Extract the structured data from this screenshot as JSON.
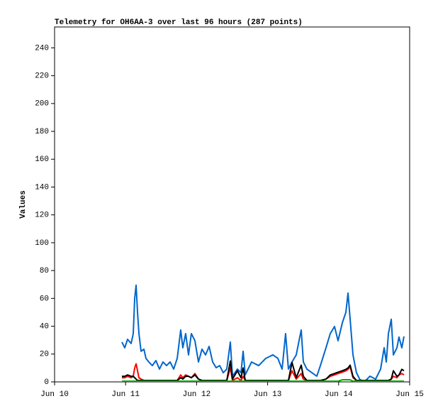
{
  "chart_data": {
    "type": "line",
    "title": "Telemetry for OH6AA-3 over last 96 hours (287 points)",
    "y_label": "Values",
    "xlim": [
      10,
      15
    ],
    "xticks": [
      {
        "value": 10,
        "label": "Jun 10"
      },
      {
        "value": 11,
        "label": "Jun 11"
      },
      {
        "value": 12,
        "label": "Jun 12"
      },
      {
        "value": 13,
        "label": "Jun 13"
      },
      {
        "value": 14,
        "label": "Jun 14"
      },
      {
        "value": 15,
        "label": "Jun 15"
      }
    ],
    "ylim": [
      0,
      255
    ],
    "yticks": [
      0,
      20,
      40,
      60,
      80,
      100,
      120,
      140,
      160,
      180,
      200,
      220,
      240
    ],
    "grid": false,
    "x": [
      10.948,
      10.988,
      11.028,
      11.078,
      11.108,
      11.128,
      11.148,
      11.168,
      11.188,
      11.218,
      11.258,
      11.287,
      11.327,
      11.377,
      11.427,
      11.477,
      11.527,
      11.577,
      11.627,
      11.677,
      11.727,
      11.776,
      11.806,
      11.846,
      11.886,
      11.926,
      11.976,
      12.026,
      12.076,
      12.126,
      12.176,
      12.226,
      12.275,
      12.325,
      12.375,
      12.425,
      12.475,
      12.505,
      12.575,
      12.625,
      12.655,
      12.685,
      12.774,
      12.874,
      12.974,
      13.074,
      13.144,
      13.204,
      13.253,
      13.293,
      13.343,
      13.403,
      13.473,
      13.503,
      13.553,
      13.623,
      13.693,
      13.743,
      13.822,
      13.882,
      13.942,
      13.992,
      14.052,
      14.102,
      14.132,
      14.162,
      14.202,
      14.251,
      14.301,
      14.371,
      14.441,
      14.521,
      14.591,
      14.641,
      14.671,
      14.701,
      14.741,
      14.771,
      14.821,
      14.85,
      14.89,
      14.92
    ],
    "series": [
      {
        "color": "#0066cc",
        "values": [
          28.6,
          24.5,
          30.6,
          27.6,
          34.7,
          60,
          69.5,
          50,
          34.7,
          22,
          23.5,
          16.9,
          14.3,
          11.7,
          15.3,
          9.2,
          14.3,
          11.7,
          14.3,
          9.2,
          16.9,
          37.3,
          24.5,
          34.7,
          19.4,
          34.7,
          29.6,
          14.3,
          23.5,
          19.4,
          25.5,
          14.3,
          10.2,
          11.7,
          6.6,
          9.2,
          28.6,
          4.1,
          9.2,
          6.6,
          22,
          5.1,
          14.3,
          11.7,
          16.9,
          19.4,
          16.9,
          9.2,
          34.7,
          9.2,
          14.3,
          19.4,
          37.3,
          14.3,
          9.2,
          6.6,
          4.1,
          11.7,
          24.5,
          34.7,
          39.8,
          29.6,
          42.4,
          50,
          63.8,
          45,
          19.4,
          6.6,
          1.5,
          0.5,
          4.1,
          2,
          9.2,
          24.5,
          14.3,
          34.7,
          45,
          19.4,
          24.5,
          32.2,
          24.5,
          32.7
        ]
      },
      {
        "color": "#ff0000",
        "values": [
          3,
          3,
          4,
          3,
          4,
          10,
          13,
          8,
          3,
          2,
          1,
          1,
          1,
          1,
          1,
          1,
          1,
          1,
          1,
          1,
          1,
          5,
          3,
          5,
          4,
          3,
          6,
          2,
          1,
          1,
          1,
          1,
          1,
          1,
          1,
          1,
          10,
          1,
          3,
          1,
          4,
          1,
          1,
          1,
          1,
          1,
          1,
          1,
          1,
          1,
          8,
          2,
          6,
          2,
          1,
          1,
          1,
          1,
          2,
          4,
          5,
          6,
          7,
          8,
          9,
          11,
          3,
          1,
          1,
          1,
          1,
          1,
          1,
          1,
          1,
          1,
          2,
          4,
          3,
          5,
          6,
          5
        ]
      },
      {
        "color": "#000000",
        "values": [
          4,
          4,
          5,
          4,
          4,
          3,
          2,
          1,
          1,
          1,
          1,
          1,
          1,
          1,
          1,
          1,
          1,
          1,
          1,
          1,
          1,
          3,
          2,
          4,
          4,
          3,
          5,
          2,
          1,
          1,
          1,
          1,
          1,
          1,
          1,
          1,
          15,
          2,
          8,
          3,
          10,
          1,
          1,
          1,
          1,
          1,
          1,
          1,
          1,
          1,
          14,
          3,
          12,
          4,
          1,
          1,
          1,
          1,
          2,
          5,
          6,
          7,
          8,
          9,
          10,
          12,
          4,
          1,
          1,
          1,
          1,
          1,
          1,
          1,
          1,
          1,
          2,
          8,
          4,
          5,
          9,
          8
        ]
      },
      {
        "color": "#00aa00",
        "values": [
          0.5,
          0.5,
          0.5,
          0.5,
          0.5,
          0.5,
          0.5,
          0.5,
          0.5,
          0.5,
          0.5,
          0.5,
          0.5,
          0.5,
          0.5,
          0.5,
          0.5,
          0.5,
          0.5,
          0.5,
          0.5,
          0.5,
          0.5,
          0.5,
          0.5,
          0.5,
          0.5,
          0.5,
          0.5,
          0.5,
          0.5,
          0.5,
          0.5,
          0.5,
          0.5,
          0.5,
          0.5,
          0.5,
          0.5,
          0.5,
          0.5,
          0.5,
          0.5,
          0.5,
          0.5,
          0.5,
          0.5,
          0.5,
          0.5,
          0.5,
          0.5,
          0.5,
          0.5,
          0.5,
          0.5,
          0.5,
          0.5,
          0.5,
          0.5,
          0.5,
          0.5,
          0.5,
          1.5,
          1.5,
          1.5,
          1.5,
          0.5,
          0.5,
          0.5,
          0.5,
          0.5,
          0.5,
          0.5,
          0.5,
          0.5,
          0.5,
          0.5,
          0.5,
          0.5,
          0.5,
          0.5,
          0.5
        ]
      }
    ]
  }
}
